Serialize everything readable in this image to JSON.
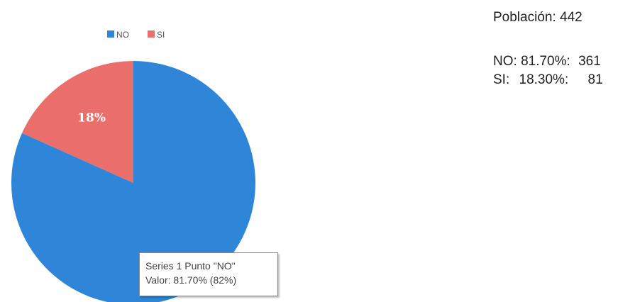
{
  "chart_data": {
    "type": "pie",
    "categories": [
      "NO",
      "SI"
    ],
    "values": [
      81.7,
      18.3
    ],
    "counts": [
      361,
      81
    ],
    "colors": [
      "#2f86d8",
      "#ea6e6a"
    ],
    "legend": {
      "placement": "top",
      "entries": [
        "NO",
        "SI"
      ]
    },
    "data_labels": [
      "",
      "18%"
    ],
    "tooltip": {
      "line1": "Series 1 Punto \"NO\"",
      "line2": "Valor: 81.70% (82%)"
    }
  },
  "stats": {
    "population": "Población: 442",
    "no_line": {
      "label": "NO:",
      "pct": "81.70%:",
      "count": "361"
    },
    "si_line": {
      "label": "SI:",
      "pct": "18.30%:",
      "count": "81"
    }
  }
}
